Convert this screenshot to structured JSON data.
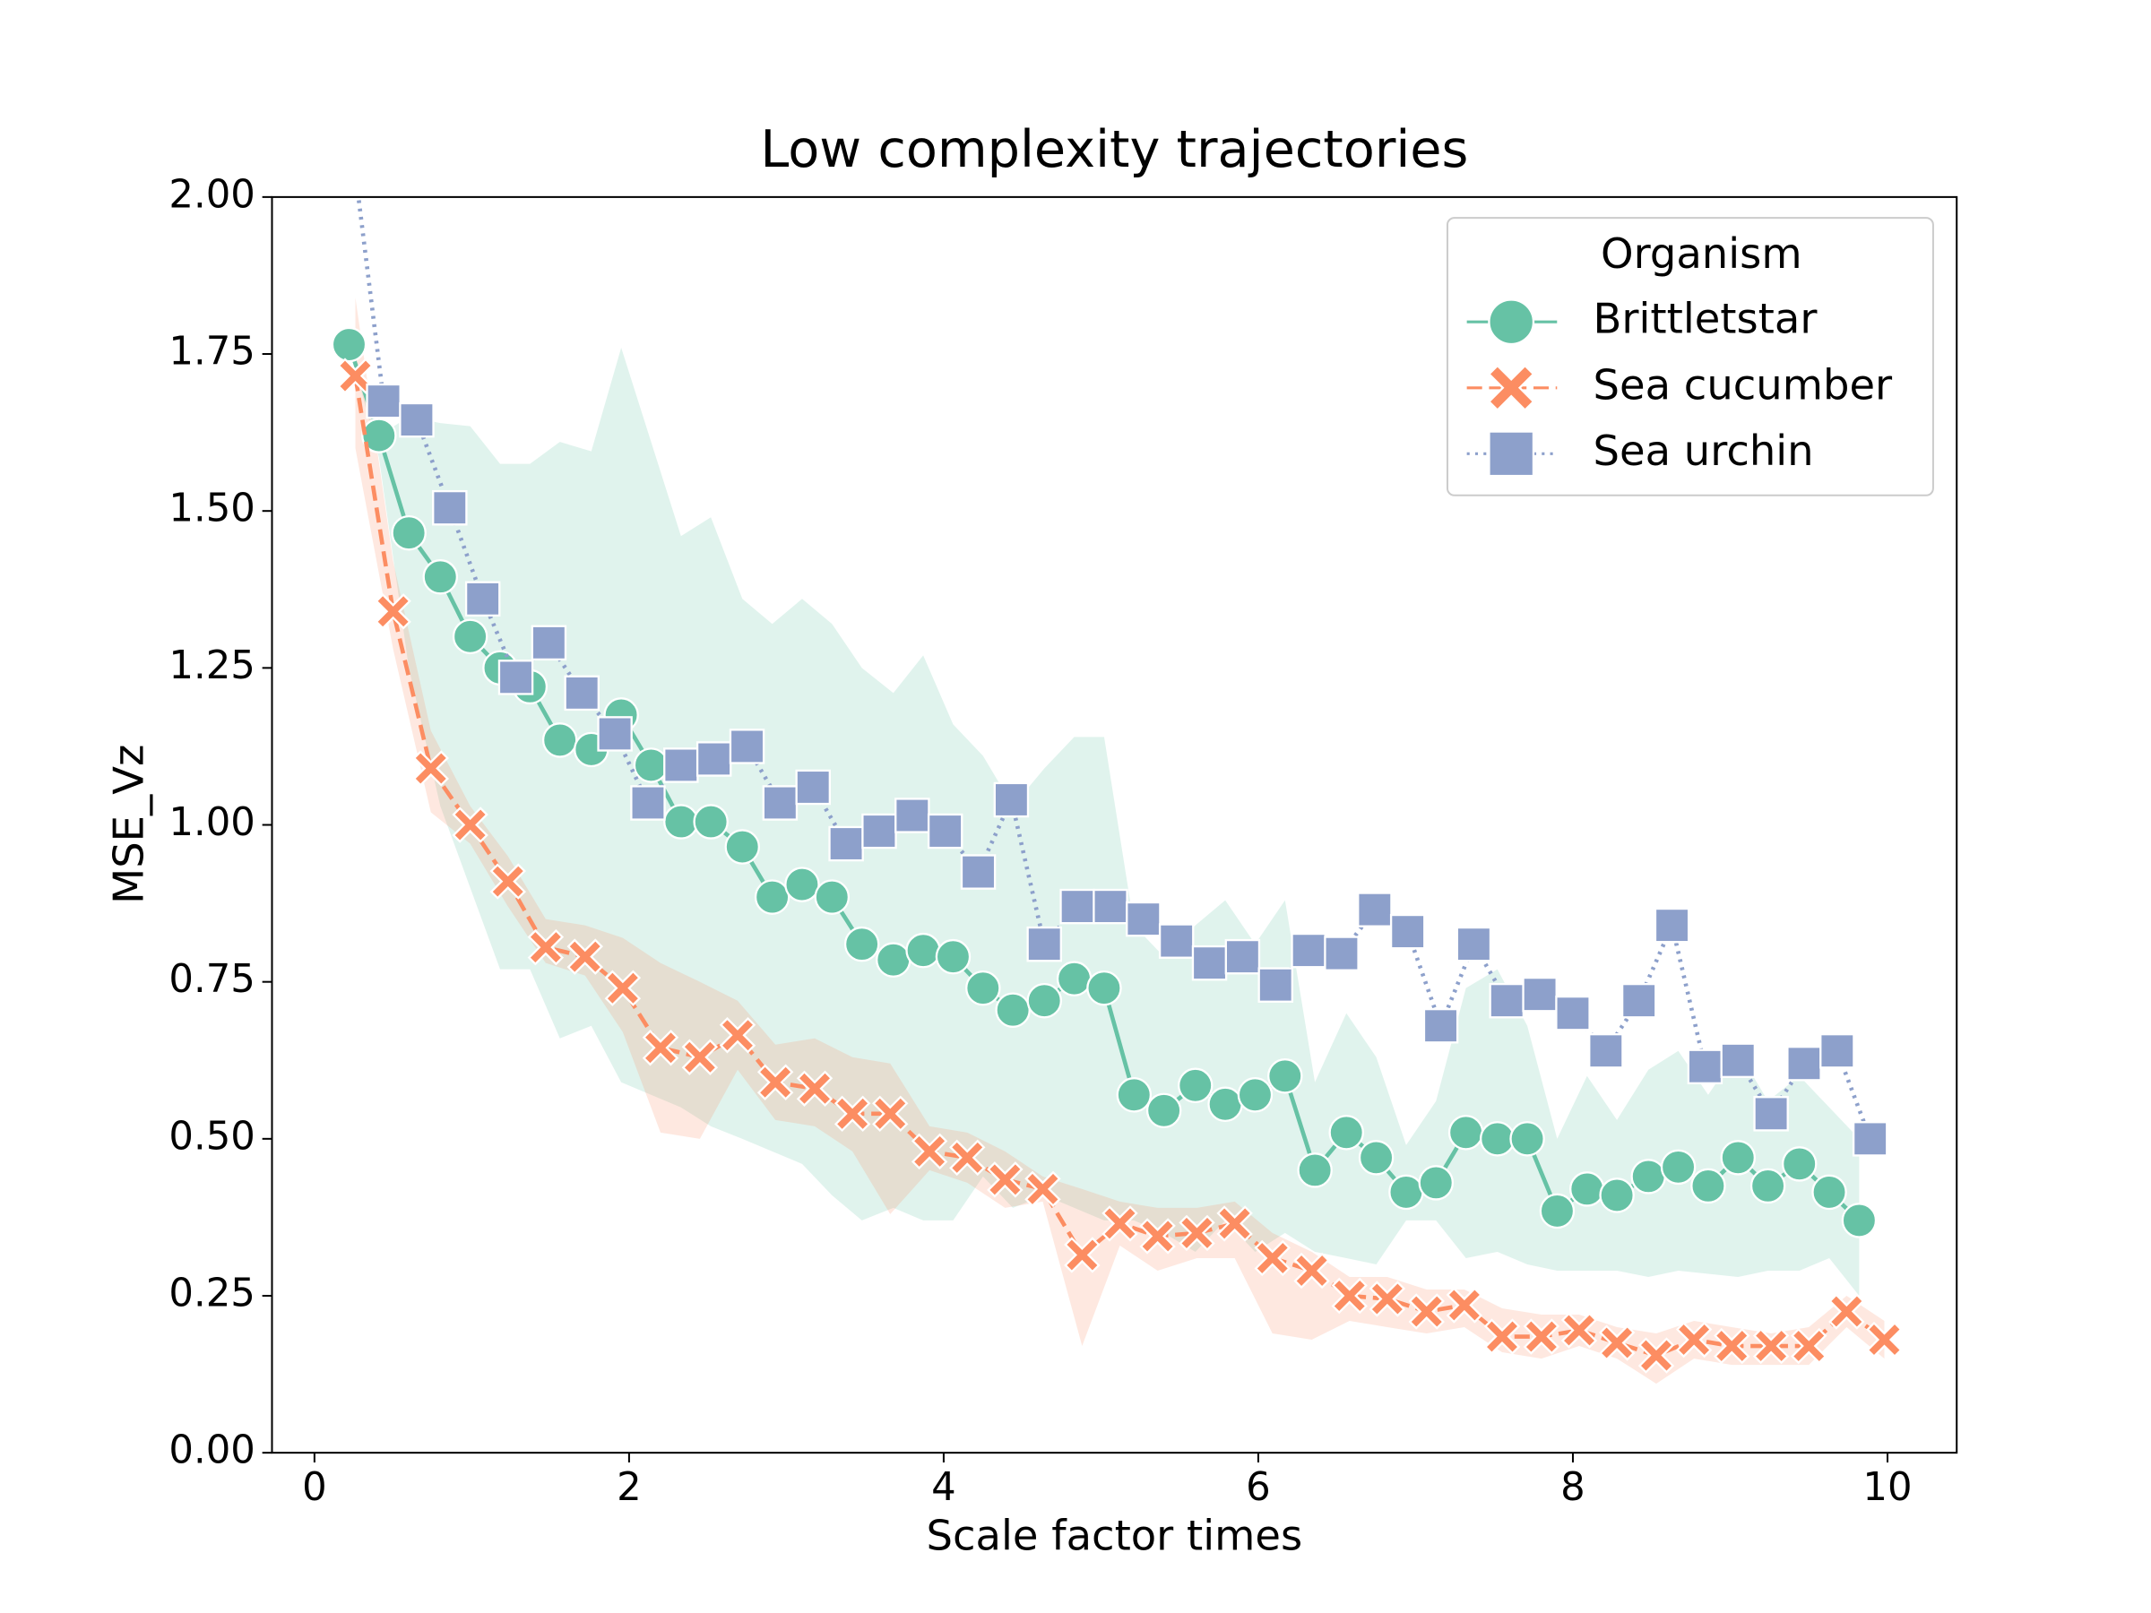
{
  "chart_data": {
    "type": "line",
    "title": "Low complexity trajectories",
    "xlabel": "Scale factor times",
    "ylabel": "MSE_Vz",
    "xlim": [
      -0.27,
      10.44
    ],
    "ylim": [
      0,
      2
    ],
    "xticks": [
      0,
      2,
      4,
      6,
      8,
      10
    ],
    "yticks": [
      {
        "value": 0,
        "label": "0.00"
      },
      {
        "value": 0.25,
        "label": "0.25"
      },
      {
        "value": 0.5,
        "label": "0.50"
      },
      {
        "value": 0.75,
        "label": "0.75"
      },
      {
        "value": 1,
        "label": "1.00"
      },
      {
        "value": 1.25,
        "label": "1.25"
      },
      {
        "value": 1.5,
        "label": "1.50"
      },
      {
        "value": 1.75,
        "label": "1.75"
      },
      {
        "value": 2,
        "label": "2.00"
      }
    ],
    "legend_title": "Organism",
    "legend": "upper right",
    "series": [
      {
        "name": "Brittletstar",
        "color": "#66c2a5",
        "marker": "circle",
        "linestyle": "solid",
        "x": [
          0.22,
          0.41,
          0.6,
          0.8,
          0.99,
          1.18,
          1.37,
          1.56,
          1.76,
          1.95,
          2.14,
          2.33,
          2.52,
          2.72,
          2.91,
          3.1,
          3.29,
          3.48,
          3.68,
          3.87,
          4.06,
          4.25,
          4.44,
          4.64,
          4.83,
          5.02,
          5.21,
          5.4,
          5.6,
          5.79,
          5.98,
          6.17,
          6.36,
          6.56,
          6.75,
          6.94,
          7.13,
          7.32,
          7.52,
          7.71,
          7.9,
          8.09,
          8.28,
          8.48,
          8.67,
          8.86,
          9.05,
          9.24,
          9.44,
          9.63,
          9.82
        ],
        "values": [
          1.765,
          1.62,
          1.465,
          1.395,
          1.3,
          1.25,
          1.22,
          1.135,
          1.12,
          1.175,
          1.095,
          1.005,
          1.005,
          0.965,
          0.885,
          0.905,
          0.885,
          0.81,
          0.785,
          0.8,
          0.79,
          0.74,
          0.705,
          0.72,
          0.755,
          0.74,
          0.57,
          0.545,
          0.585,
          0.555,
          0.57,
          0.6,
          0.45,
          0.51,
          0.47,
          0.415,
          0.43,
          0.51,
          0.5,
          0.5,
          0.385,
          0.42,
          0.41,
          0.44,
          0.455,
          0.425,
          0.47,
          0.425,
          0.46,
          0.415,
          0.37
        ],
        "lower": [
          1.765,
          1.585,
          1.25,
          1.03,
          0.9,
          0.77,
          0.77,
          0.66,
          0.68,
          0.59,
          0.57,
          0.55,
          0.52,
          0.5,
          0.48,
          0.46,
          0.41,
          0.37,
          0.39,
          0.37,
          0.37,
          0.44,
          0.39,
          0.41,
          0.39,
          0.37,
          0.37,
          0.35,
          0.32,
          0.37,
          0.32,
          0.35,
          0.32,
          0.31,
          0.3,
          0.37,
          0.37,
          0.31,
          0.32,
          0.3,
          0.29,
          0.29,
          0.29,
          0.28,
          0.29,
          0.285,
          0.28,
          0.29,
          0.29,
          0.31,
          0.25
        ],
        "upper": [
          1.765,
          1.62,
          1.65,
          1.64,
          1.635,
          1.575,
          1.575,
          1.61,
          1.595,
          1.76,
          1.61,
          1.46,
          1.49,
          1.36,
          1.32,
          1.36,
          1.32,
          1.25,
          1.21,
          1.27,
          1.16,
          1.11,
          1.03,
          1.09,
          1.14,
          1.14,
          0.84,
          0.79,
          0.84,
          0.88,
          0.81,
          0.88,
          0.59,
          0.7,
          0.63,
          0.49,
          0.56,
          0.74,
          0.77,
          0.68,
          0.5,
          0.6,
          0.53,
          0.61,
          0.64,
          0.57,
          0.64,
          0.56,
          0.6,
          0.55,
          0.5
        ]
      },
      {
        "name": "Sea cucumber",
        "color": "#fc8d62",
        "marker": "x",
        "linestyle": "dashed",
        "x": [
          0.26,
          0.5,
          0.74,
          0.99,
          1.23,
          1.47,
          1.72,
          1.96,
          2.2,
          2.45,
          2.69,
          2.93,
          3.18,
          3.42,
          3.66,
          3.91,
          4.15,
          4.39,
          4.63,
          4.88,
          5.12,
          5.36,
          5.61,
          5.85,
          6.09,
          6.34,
          6.58,
          6.82,
          7.07,
          7.31,
          7.55,
          7.8,
          8.04,
          8.28,
          8.53,
          8.77,
          9.01,
          9.26,
          9.5,
          9.74,
          9.98
        ],
        "values": [
          1.715,
          1.34,
          1.09,
          1.0,
          0.91,
          0.805,
          0.79,
          0.74,
          0.645,
          0.63,
          0.665,
          0.59,
          0.58,
          0.54,
          0.54,
          0.48,
          0.47,
          0.435,
          0.42,
          0.315,
          0.365,
          0.345,
          0.35,
          0.365,
          0.31,
          0.29,
          0.25,
          0.245,
          0.225,
          0.235,
          0.185,
          0.185,
          0.195,
          0.175,
          0.155,
          0.18,
          0.17,
          0.17,
          0.17,
          0.225,
          0.18
        ],
        "lower": [
          1.6,
          1.28,
          1.02,
          0.97,
          0.87,
          0.78,
          0.76,
          0.67,
          0.51,
          0.5,
          0.61,
          0.53,
          0.52,
          0.48,
          0.38,
          0.45,
          0.43,
          0.39,
          0.4,
          0.17,
          0.33,
          0.29,
          0.31,
          0.31,
          0.19,
          0.18,
          0.21,
          0.2,
          0.19,
          0.2,
          0.16,
          0.15,
          0.17,
          0.15,
          0.11,
          0.15,
          0.14,
          0.14,
          0.14,
          0.2,
          0.15
        ],
        "upper": [
          1.84,
          1.42,
          1.15,
          1.03,
          0.95,
          0.85,
          0.84,
          0.82,
          0.78,
          0.75,
          0.72,
          0.65,
          0.66,
          0.63,
          0.62,
          0.52,
          0.51,
          0.48,
          0.44,
          0.42,
          0.4,
          0.39,
          0.39,
          0.4,
          0.35,
          0.32,
          0.28,
          0.28,
          0.26,
          0.26,
          0.23,
          0.22,
          0.22,
          0.2,
          0.19,
          0.21,
          0.2,
          0.19,
          0.2,
          0.25,
          0.21
        ]
      },
      {
        "name": "Sea urchin",
        "color": "#8da0cb",
        "marker": "square",
        "linestyle": "dotted",
        "x": [
          0.23,
          0.44,
          0.65,
          0.86,
          1.07,
          1.28,
          1.49,
          1.7,
          1.91,
          2.12,
          2.33,
          2.54,
          2.75,
          2.96,
          3.17,
          3.38,
          3.59,
          3.8,
          4.01,
          4.22,
          4.43,
          4.64,
          4.85,
          5.06,
          5.27,
          5.48,
          5.69,
          5.9,
          6.11,
          6.32,
          6.53,
          6.74,
          6.95,
          7.16,
          7.37,
          7.58,
          7.79,
          8.0,
          8.21,
          8.42,
          8.63,
          8.84,
          9.05,
          9.26,
          9.47,
          9.68,
          9.89
        ],
        "values": [
          2.1,
          1.675,
          1.645,
          1.505,
          1.36,
          1.235,
          1.29,
          1.21,
          1.145,
          1.035,
          1.095,
          1.105,
          1.125,
          1.035,
          1.06,
          0.97,
          0.99,
          1.015,
          0.99,
          0.925,
          1.04,
          0.81,
          0.87,
          0.87,
          0.85,
          0.815,
          0.78,
          0.79,
          0.745,
          0.8,
          0.795,
          0.865,
          0.83,
          0.68,
          0.81,
          0.72,
          0.73,
          0.7,
          0.64,
          0.72,
          0.84,
          0.615,
          0.625,
          0.54,
          0.62,
          0.64,
          0.5
        ]
      }
    ]
  }
}
